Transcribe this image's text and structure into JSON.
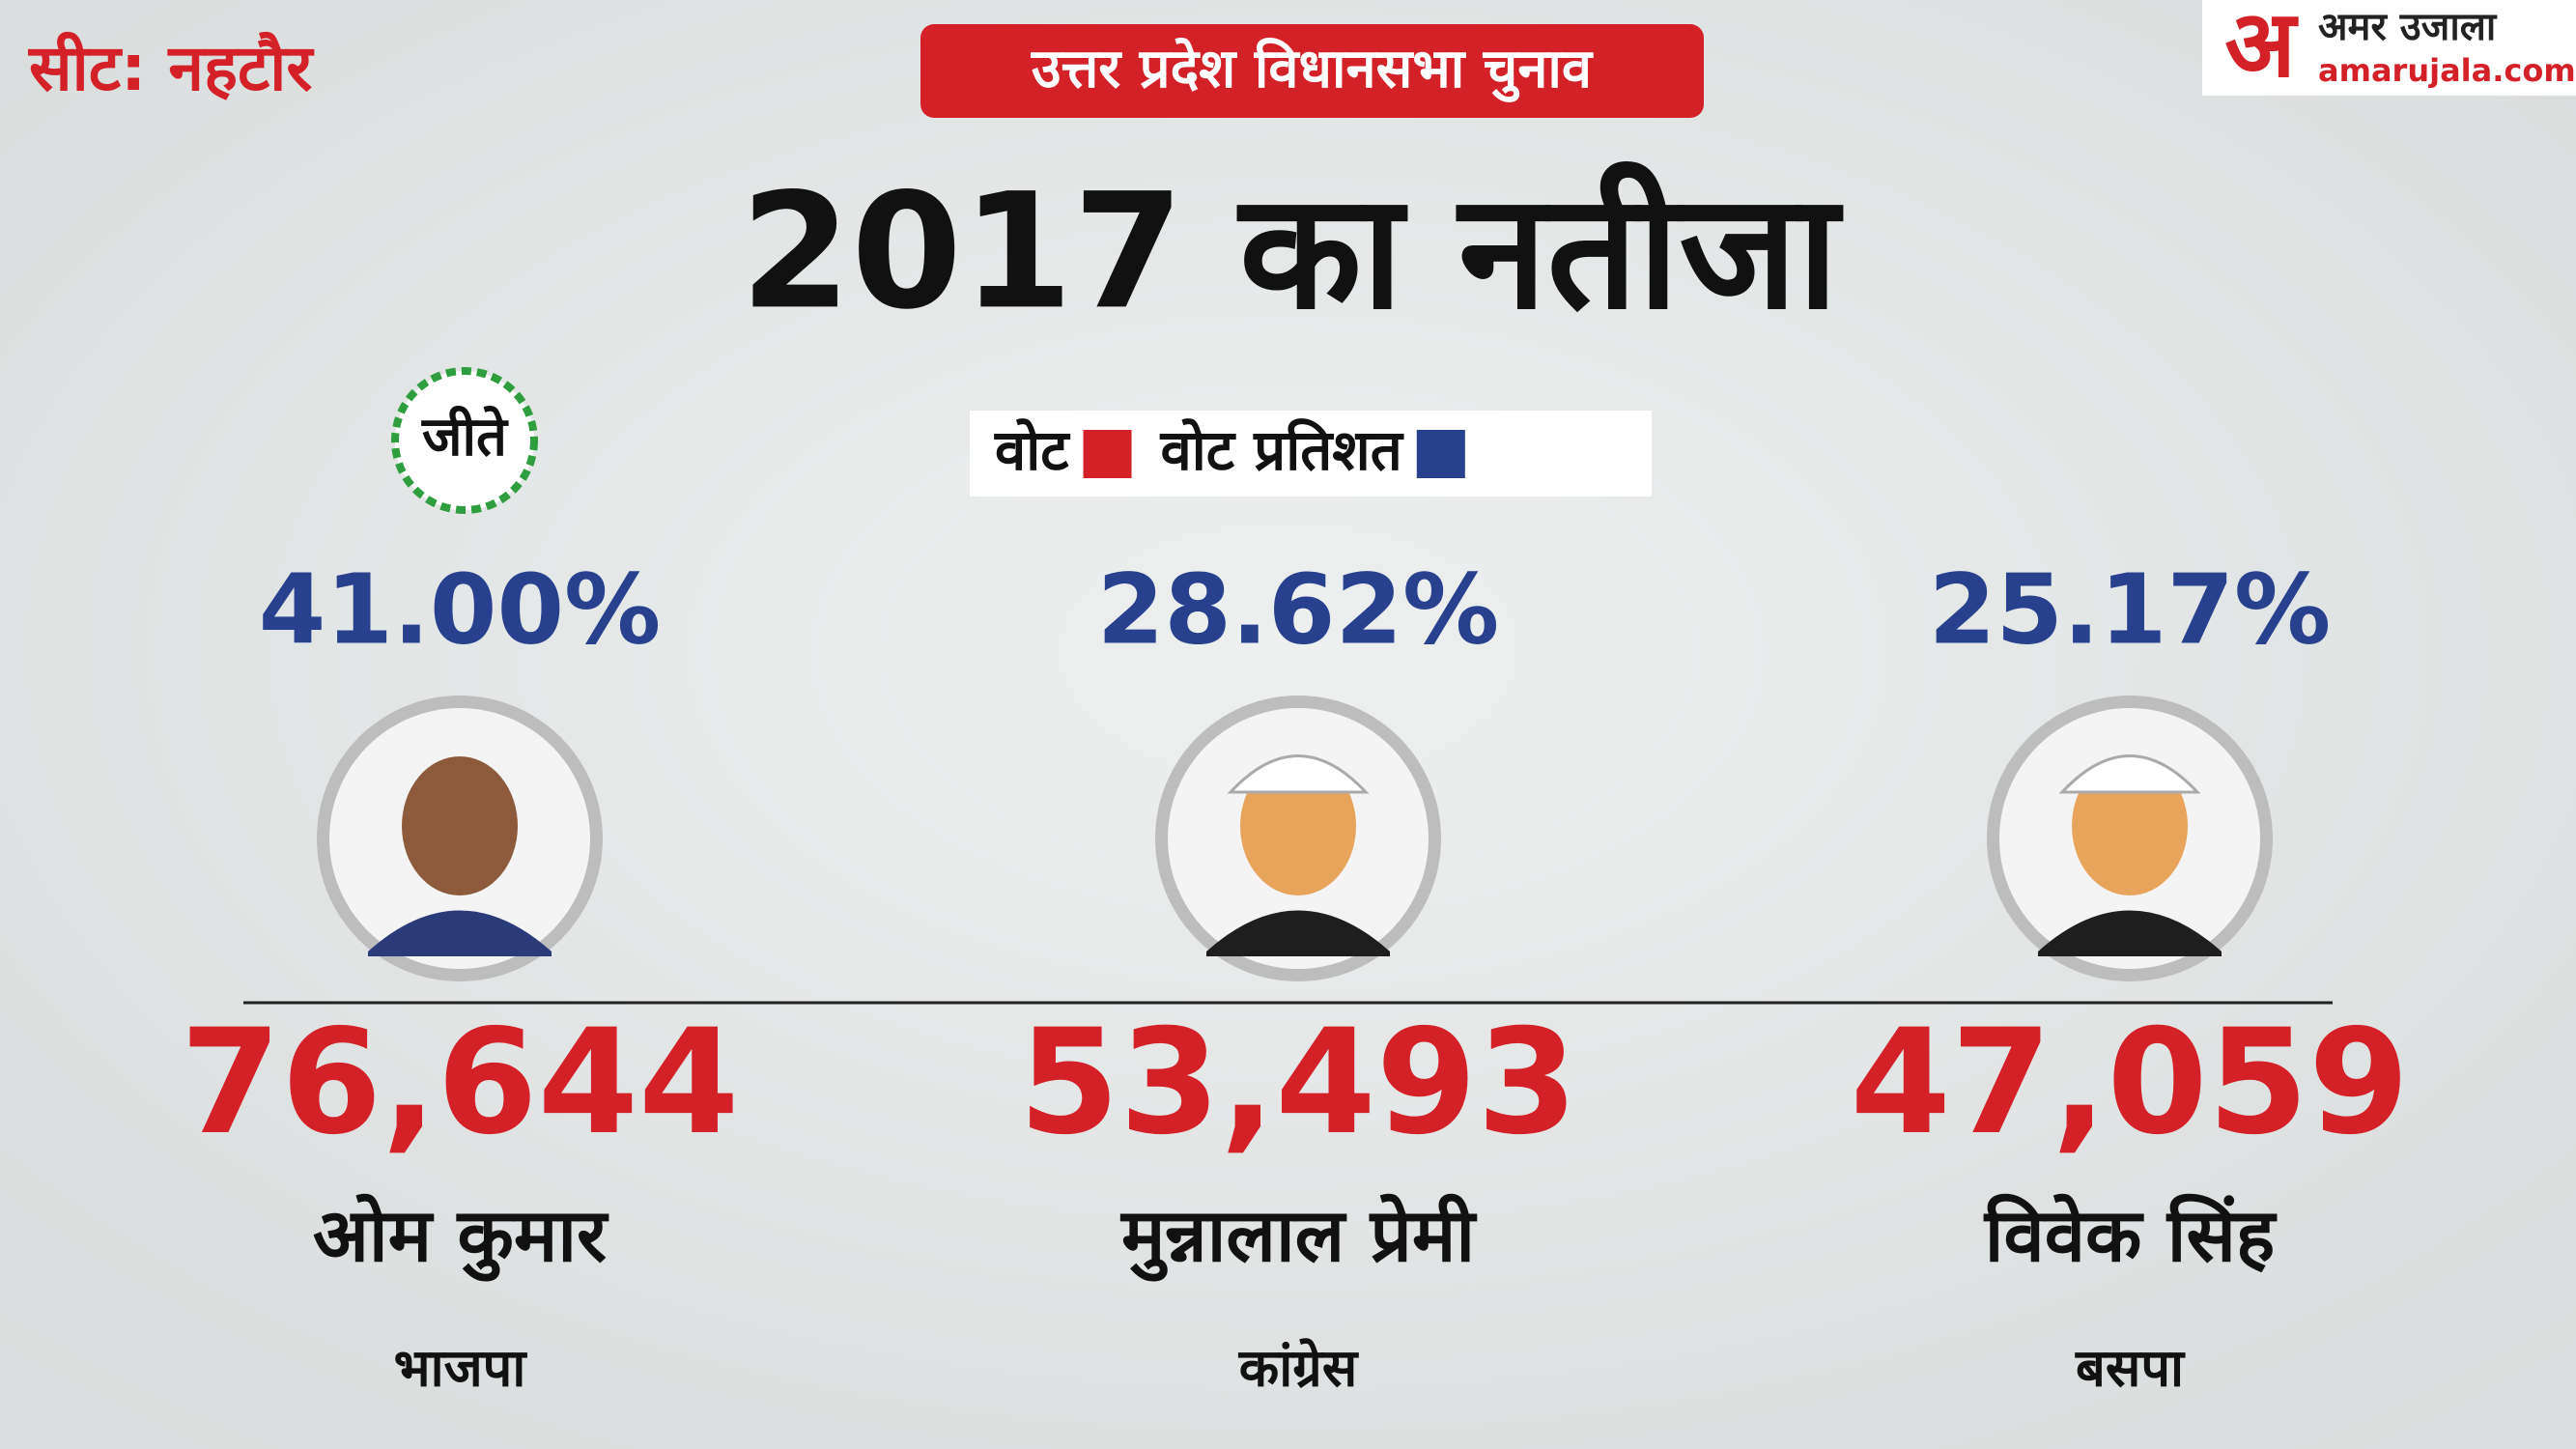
{
  "header": {
    "seat": "सीट: नहटौर",
    "banner": "उत्तर प्रदेश विधानसभा चुनाव",
    "title": "2017 का नतीजा"
  },
  "logo": {
    "mark": "अ",
    "name": "अमर उजाला",
    "site": "amarujala.com"
  },
  "legend": {
    "items": [
      {
        "label": "वोट",
        "color": "#d42027"
      },
      {
        "label": "वोट प्रतिशत",
        "color": "#27418f"
      }
    ]
  },
  "winner_badge": "जीते",
  "candidates": [
    {
      "vote_share": "41.00%",
      "votes": "76,644",
      "name": "ओम कुमार",
      "party": "भाजपा"
    },
    {
      "vote_share": "28.62%",
      "votes": "53,493",
      "name": "मुन्नालाल प्रेमी",
      "party": "कांग्रेस"
    },
    {
      "vote_share": "25.17%",
      "votes": "47,059",
      "name": "विवेक सिंह",
      "party": "बसपा"
    }
  ]
}
